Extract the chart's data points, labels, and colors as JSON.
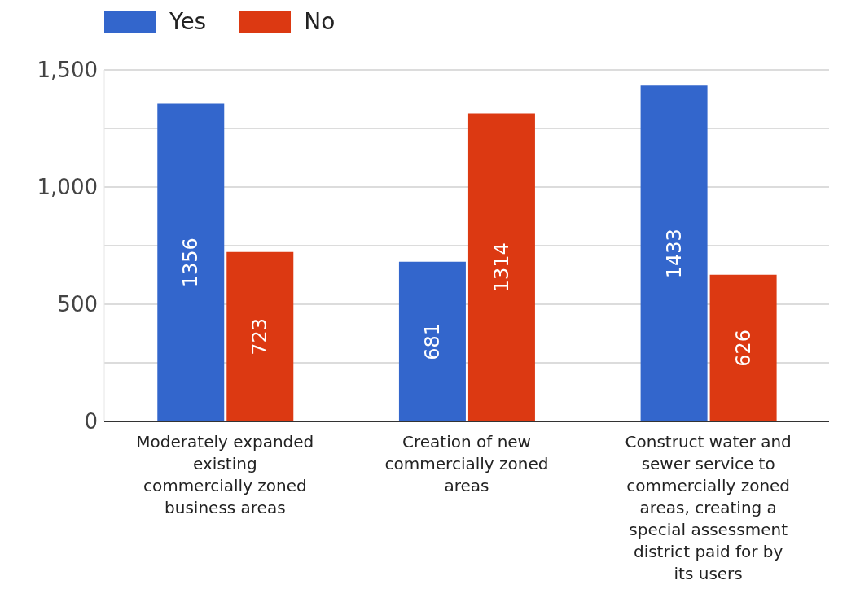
{
  "chart_data": {
    "type": "bar",
    "categories": [
      "Moderately expanded existing commercially zoned business areas",
      "Creation of new commercially zoned areas",
      "Construct water and sewer service to commercially zoned areas, creating a special assessment district paid for by its users"
    ],
    "series": [
      {
        "name": "Yes",
        "color": "#3366cc",
        "values": [
          1356,
          681,
          1433
        ]
      },
      {
        "name": "No",
        "color": "#dc3912",
        "values": [
          723,
          1314,
          626
        ]
      }
    ],
    "ylim": [
      0,
      1500
    ],
    "yticks": [
      0,
      {
        "value": 250,
        "label": null
      },
      {
        "value": 500,
        "label": "500"
      },
      {
        "value": 750,
        "label": null
      },
      {
        "value": 1000,
        "label": "1,000"
      },
      {
        "value": 1250,
        "label": null
      },
      {
        "value": 1500,
        "label": "1,500"
      }
    ],
    "grid": "y",
    "legend": "top left",
    "data_labels": true
  }
}
